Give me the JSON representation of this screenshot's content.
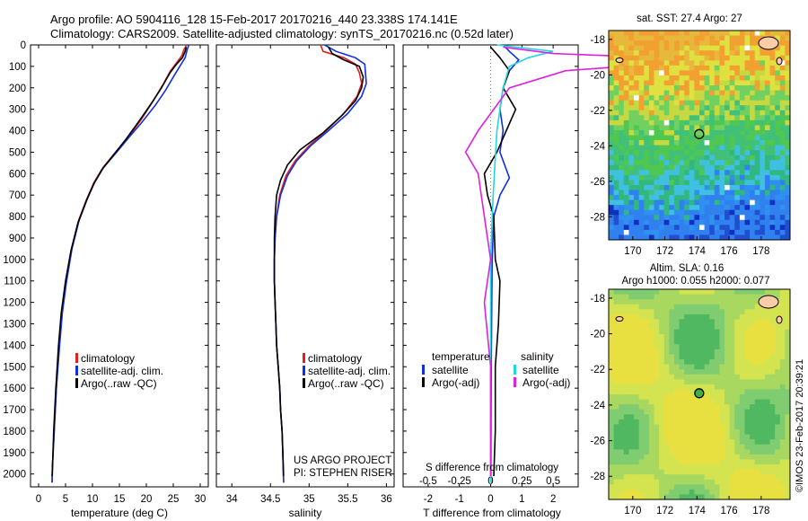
{
  "header": {
    "line1": "Argo profile: AO 5904116_128 15-Feb-2017 20170216_440 23.338S 174.141E",
    "line2": "Climatology: CARS2009. Satellite-adjusted climatology: synTS_20170216.nc (0.52d later)"
  },
  "colors": {
    "climatology": "#e02020",
    "satellite": "#1030e0",
    "argo": "#000000",
    "satellite_s": "#20d8e0",
    "argo_s": "#e020e0"
  },
  "depth_axis": {
    "ticks": [
      "0",
      "100",
      "200",
      "300",
      "400",
      "500",
      "600",
      "700",
      "800",
      "900",
      "1000",
      "1100",
      "1200",
      "1300",
      "1400",
      "1500",
      "1600",
      "1700",
      "1800",
      "1900",
      "2000"
    ],
    "range": [
      0,
      2060
    ]
  },
  "chart_data": [
    {
      "type": "line",
      "xlabel": "temperature (deg C)",
      "xticks": [
        "0",
        "5",
        "10",
        "15",
        "20",
        "25",
        "30"
      ],
      "xlim": [
        -1.5,
        31.5
      ],
      "legend": [
        "climatology",
        "satellite-adj. clim.",
        "Argo(..raw -QC)"
      ],
      "series": [
        {
          "name": "climatology",
          "color": "climatology",
          "points": [
            [
              27.5,
              0
            ],
            [
              27,
              20
            ],
            [
              26.6,
              50
            ],
            [
              25.7,
              80
            ],
            [
              24.5,
              120
            ],
            [
              23.2,
              180
            ],
            [
              21.3,
              260
            ],
            [
              19,
              350
            ],
            [
              16.6,
              430
            ],
            [
              14.3,
              500
            ],
            [
              12,
              570
            ],
            [
              10.3,
              640
            ],
            [
              8.9,
              720
            ],
            [
              7.4,
              820
            ],
            [
              6.1,
              950
            ],
            [
              5.1,
              1100
            ],
            [
              4.3,
              1250
            ],
            [
              3.8,
              1400
            ],
            [
              3.3,
              1600
            ],
            [
              2.9,
              1800
            ],
            [
              2.6,
              1950
            ],
            [
              2.5,
              2040
            ]
          ]
        },
        {
          "name": "satellite-adj. clim.",
          "color": "satellite",
          "points": [
            [
              27.9,
              0
            ],
            [
              27.6,
              20
            ],
            [
              27.2,
              60
            ],
            [
              26.2,
              100
            ],
            [
              25.0,
              150
            ],
            [
              23.6,
              210
            ],
            [
              21.7,
              280
            ],
            [
              19.2,
              360
            ],
            [
              16.8,
              430
            ],
            [
              14.5,
              500
            ],
            [
              12.1,
              570
            ],
            [
              10.4,
              640
            ],
            [
              9.0,
              720
            ],
            [
              7.5,
              820
            ],
            [
              6.2,
              950
            ],
            [
              5.2,
              1100
            ],
            [
              4.4,
              1250
            ],
            [
              3.9,
              1400
            ],
            [
              3.3,
              1600
            ],
            [
              2.9,
              1800
            ],
            [
              2.6,
              1950
            ],
            [
              2.5,
              2040
            ]
          ]
        },
        {
          "name": "Argo(..raw -QC)",
          "color": "argo",
          "points": [
            [
              27.4,
              10
            ],
            [
              27.2,
              30
            ],
            [
              26.7,
              60
            ],
            [
              25.6,
              90
            ],
            [
              24.4,
              130
            ],
            [
              22.8,
              200
            ],
            [
              21,
              270
            ],
            [
              18.8,
              350
            ],
            [
              16.2,
              440
            ],
            [
              14,
              510
            ],
            [
              11.8,
              580
            ],
            [
              10.2,
              650
            ],
            [
              8.8,
              730
            ],
            [
              7.3,
              830
            ],
            [
              6.0,
              960
            ],
            [
              5.0,
              1100
            ],
            [
              4.2,
              1250
            ],
            [
              3.7,
              1400
            ],
            [
              3.2,
              1600
            ],
            [
              2.8,
              1800
            ],
            [
              2.6,
              1950
            ],
            [
              2.5,
              2010
            ]
          ]
        }
      ]
    },
    {
      "type": "line",
      "xlabel": "salinity",
      "xticks": [
        "34",
        "34.5",
        "35",
        "35.5",
        "36"
      ],
      "xlim": [
        33.8,
        36.1
      ],
      "legend": [
        "climatology",
        "satellite-adj. clim.",
        "Argo(..raw -QC)"
      ],
      "annotations": [
        "US ARGO PROJECT",
        "PI: STEPHEN RISER"
      ],
      "series": [
        {
          "name": "climatology",
          "color": "climatology",
          "points": [
            [
              35.15,
              0
            ],
            [
              35.18,
              30
            ],
            [
              35.45,
              60
            ],
            [
              35.6,
              90
            ],
            [
              35.65,
              130
            ],
            [
              35.68,
              180
            ],
            [
              35.62,
              240
            ],
            [
              35.45,
              320
            ],
            [
              35.22,
              400
            ],
            [
              35.0,
              470
            ],
            [
              34.82,
              540
            ],
            [
              34.7,
              610
            ],
            [
              34.62,
              700
            ],
            [
              34.58,
              800
            ],
            [
              34.56,
              900
            ],
            [
              34.55,
              1000
            ],
            [
              34.55,
              1100
            ],
            [
              34.56,
              1200
            ],
            [
              34.57,
              1300
            ],
            [
              34.58,
              1400
            ],
            [
              34.6,
              1500
            ],
            [
              34.62,
              1600
            ],
            [
              34.63,
              1700
            ],
            [
              34.65,
              1800
            ],
            [
              34.66,
              1900
            ],
            [
              34.67,
              2040
            ]
          ]
        },
        {
          "name": "satellite-adj. clim.",
          "color": "satellite",
          "points": [
            [
              35.2,
              0
            ],
            [
              35.35,
              30
            ],
            [
              35.6,
              60
            ],
            [
              35.72,
              90
            ],
            [
              35.73,
              130
            ],
            [
              35.74,
              180
            ],
            [
              35.68,
              240
            ],
            [
              35.5,
              320
            ],
            [
              35.25,
              400
            ],
            [
              35.02,
              470
            ],
            [
              34.84,
              540
            ],
            [
              34.72,
              610
            ],
            [
              34.63,
              700
            ],
            [
              34.58,
              800
            ],
            [
              34.56,
              900
            ],
            [
              34.55,
              1000
            ],
            [
              34.55,
              1100
            ],
            [
              34.56,
              1200
            ],
            [
              34.57,
              1300
            ],
            [
              34.58,
              1400
            ],
            [
              34.6,
              1500
            ],
            [
              34.62,
              1600
            ],
            [
              34.63,
              1700
            ],
            [
              34.65,
              1800
            ],
            [
              34.66,
              1900
            ],
            [
              34.67,
              2040
            ]
          ]
        },
        {
          "name": "Argo(..raw -QC)",
          "color": "argo",
          "points": [
            [
              35.25,
              10
            ],
            [
              35.3,
              40
            ],
            [
              35.45,
              70
            ],
            [
              35.65,
              100
            ],
            [
              35.7,
              150
            ],
            [
              35.68,
              200
            ],
            [
              35.6,
              260
            ],
            [
              35.42,
              330
            ],
            [
              35.18,
              410
            ],
            [
              34.88,
              490
            ],
            [
              34.72,
              560
            ],
            [
              34.63,
              630
            ],
            [
              34.58,
              700
            ],
            [
              34.56,
              800
            ],
            [
              34.55,
              900
            ],
            [
              34.55,
              1000
            ],
            [
              34.55,
              1100
            ],
            [
              34.56,
              1200
            ],
            [
              34.57,
              1300
            ],
            [
              34.58,
              1400
            ],
            [
              34.6,
              1500
            ],
            [
              34.62,
              1600
            ],
            [
              34.63,
              1700
            ],
            [
              34.65,
              1800
            ],
            [
              34.66,
              1900
            ],
            [
              34.67,
              2010
            ]
          ]
        }
      ]
    },
    {
      "type": "line",
      "xlabel": "T difference from climatology",
      "xlabel_top": "S difference from climatology",
      "xticks": [
        "-2",
        "-1",
        "0",
        "1",
        "2"
      ],
      "xticks_s": [
        "-0.5",
        "-0.25",
        "0",
        "0.25",
        "0.5"
      ],
      "xlim": [
        -2.8,
        2.8
      ],
      "legend_groups": [
        {
          "title": "temperature",
          "items": [
            "satellite",
            "Argo(-adj)"
          ]
        },
        {
          "title": "salinity",
          "items": [
            "satellite",
            "Argo(-adj)"
          ]
        }
      ],
      "series": [
        {
          "name": "temperature satellite",
          "color": "satellite",
          "points": [
            [
              0.4,
              0
            ],
            [
              0.6,
              30
            ],
            [
              0.9,
              70
            ],
            [
              0.6,
              120
            ],
            [
              0.4,
              200
            ],
            [
              0.3,
              300
            ],
            [
              0.4,
              400
            ],
            [
              0.3,
              500
            ],
            [
              0.6,
              620
            ],
            [
              0.3,
              700
            ],
            [
              0.1,
              800
            ],
            [
              0.05,
              1000
            ],
            [
              0.02,
              1500
            ],
            [
              0.01,
              2040
            ]
          ]
        },
        {
          "name": "temperature Argo(-adj)",
          "color": "argo",
          "points": [
            [
              0.0,
              10
            ],
            [
              0.3,
              60
            ],
            [
              0.6,
              120
            ],
            [
              0.4,
              200
            ],
            [
              0.8,
              300
            ],
            [
              0.5,
              400
            ],
            [
              0.2,
              500
            ],
            [
              -0.2,
              600
            ],
            [
              -0.1,
              700
            ],
            [
              0.1,
              800
            ],
            [
              0.15,
              1000
            ],
            [
              0.3,
              1100
            ],
            [
              0.25,
              1300
            ],
            [
              0.15,
              1500
            ],
            [
              0.15,
              1800
            ],
            [
              0.1,
              2010
            ]
          ]
        },
        {
          "name": "salinity satellite",
          "color": "satellite_s",
          "points": [
            [
              0.05,
              0
            ],
            [
              0.5,
              30
            ],
            [
              0.3,
              60
            ],
            [
              0.15,
              100
            ],
            [
              0.1,
              200
            ],
            [
              0.05,
              400
            ],
            [
              0.02,
              700
            ],
            [
              0.0,
              1000
            ],
            [
              0.0,
              1500
            ],
            [
              0.0,
              2040
            ]
          ]
        },
        {
          "name": "salinity Argo(-adj)",
          "color": "argo_s",
          "points": [
            [
              0.1,
              10
            ],
            [
              0.5,
              40
            ],
            [
              1.8,
              70
            ],
            [
              0.6,
              120
            ],
            [
              0.15,
              200
            ],
            [
              -0.1,
              400
            ],
            [
              -0.2,
              500
            ],
            [
              -0.1,
              600
            ],
            [
              -0.05,
              800
            ],
            [
              0.0,
              1000
            ],
            [
              -0.05,
              1200
            ],
            [
              0.0,
              1500
            ],
            [
              0.0,
              2010
            ]
          ]
        }
      ]
    },
    {
      "type": "heatmap",
      "title": "sat. SST: 27.4  Argo: 27",
      "xticks": [
        "170",
        "172",
        "174",
        "176",
        "178"
      ],
      "yticks": [
        "-18",
        "-20",
        "-22",
        "-24",
        "-26",
        "-28"
      ],
      "xlim": [
        168.5,
        179.8
      ],
      "ylim": [
        -29.3,
        -17.5
      ],
      "marker": [
        174.14,
        -23.34
      ]
    },
    {
      "type": "heatmap",
      "title": "Altim. SLA: 0.16",
      "subtitle": "Argo h1000: 0.055  h2000: 0.077",
      "xticks": [
        "170",
        "172",
        "174",
        "176",
        "178"
      ],
      "yticks": [
        "-18",
        "-20",
        "-22",
        "-24",
        "-26",
        "-28"
      ],
      "xlim": [
        168.5,
        179.8
      ],
      "ylim": [
        -29.3,
        -17.5
      ],
      "marker": [
        174.14,
        -23.34
      ]
    }
  ],
  "footer_stamp": "©IMOS 23-Feb-2017 20:39:21"
}
